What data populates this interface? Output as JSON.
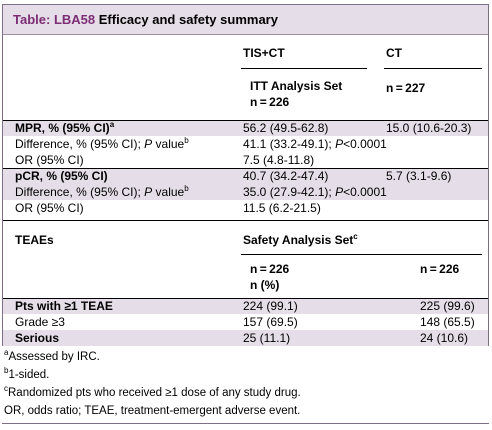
{
  "title": {
    "label": "Table:",
    "number": "LBA58",
    "text": "Efficacy and safety summary"
  },
  "header": {
    "col1": "TIS+CT",
    "col2": "CT",
    "set_label_line1": "ITT Analysis Set",
    "set_label_line2": "n = 226",
    "ct_n": "n = 227"
  },
  "efficacy": [
    {
      "label": "MPR, % (95% CI)",
      "sup": "a",
      "v1": "56.2 (49.5-62.8)",
      "v2": "15.0 (10.6-20.3)",
      "bold": true,
      "shaded": true
    },
    {
      "label": "Difference, % (95% CI); ",
      "italic": "P",
      "label_rest": " value",
      "sup": "b",
      "v1_pre": "41.1 (33.2-49.1); ",
      "v1_it": "P",
      "v1_post": "<0.0001",
      "bold": false,
      "shaded": false
    },
    {
      "label": "OR (95% CI)",
      "v1": "7.5 (4.8-11.8)",
      "bold": false,
      "shaded": false
    },
    {
      "label": "pCR, % (95% CI)",
      "v1": "40.7 (34.2-47.4)",
      "v2": "5.7 (3.1-9.6)",
      "bold": true,
      "shaded": true
    },
    {
      "label": "Difference, % (95% CI); ",
      "italic": "P",
      "label_rest": " value",
      "sup": "b",
      "v1_pre": "35.0 (27.9-42.1); ",
      "v1_it": "P",
      "v1_post": "<0.0001",
      "bold": false,
      "shaded": true
    },
    {
      "label": "OR (95% CI)",
      "v1": "11.5 (6.2-21.5)",
      "bold": false,
      "shaded": false
    }
  ],
  "safety_header": {
    "label": "TEAEs",
    "set_label": "Safety Analysis Set",
    "set_sup": "c",
    "n1_line1": "n = 226",
    "n1_line2": "n (%)",
    "n2": "n = 226"
  },
  "safety": [
    {
      "label": "Pts with ≥1 TEAE",
      "v1": "224 (99.1)",
      "v2": "225 (99.6)",
      "bold": true,
      "shaded": true
    },
    {
      "label": "Grade ≥3",
      "v1": "157 (69.5)",
      "v2": "148 (65.5)",
      "bold": false,
      "shaded": false
    },
    {
      "label": "Serious",
      "v1": "25 (11.1)",
      "v2": "24 (10.6)",
      "bold": true,
      "shaded": true
    }
  ],
  "footnotes": [
    {
      "sup": "a",
      "text": "Assessed by IRC."
    },
    {
      "sup": "b",
      "text": "1-sided."
    },
    {
      "sup": "c",
      "text": "Randomized pts who received ≥1 dose of any study drug."
    },
    {
      "sup": "",
      "text": "OR, odds ratio; TEAE, treatment-emergent adverse event."
    }
  ],
  "colors": {
    "accent": "#7d2d73",
    "shade": "#e5dde8",
    "border": "#7e6f84"
  }
}
